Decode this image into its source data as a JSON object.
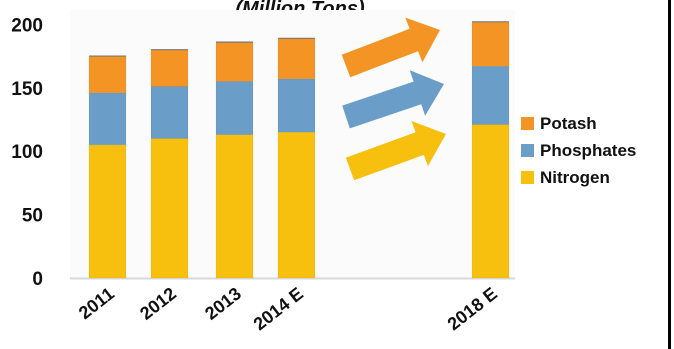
{
  "chart_data": {
    "type": "bar",
    "stacked": true,
    "subtitle": "(Million Tons)",
    "categories": [
      "2011",
      "2012",
      "2013",
      "2014 E",
      "2018 E"
    ],
    "series": [
      {
        "name": "Nitrogen",
        "values": [
          105,
          110,
          113,
          115,
          121
        ],
        "color": "#F7BF0E"
      },
      {
        "name": "Phosphates",
        "values": [
          41,
          41,
          42,
          42,
          46
        ],
        "color": "#6A9DC8"
      },
      {
        "name": "Potash",
        "values": [
          29,
          29,
          31,
          32,
          35
        ],
        "color": "#F39425"
      }
    ],
    "yticks": [
      "0",
      "50",
      "100",
      "150",
      "200"
    ],
    "ylim": [
      0,
      205
    ],
    "grid": false,
    "legend_position": "right",
    "legend_order": [
      "Potash",
      "Phosphates",
      "Nitrogen"
    ],
    "arrow_colors": [
      "#F39425",
      "#6A9DC8",
      "#F7BF0E"
    ]
  }
}
